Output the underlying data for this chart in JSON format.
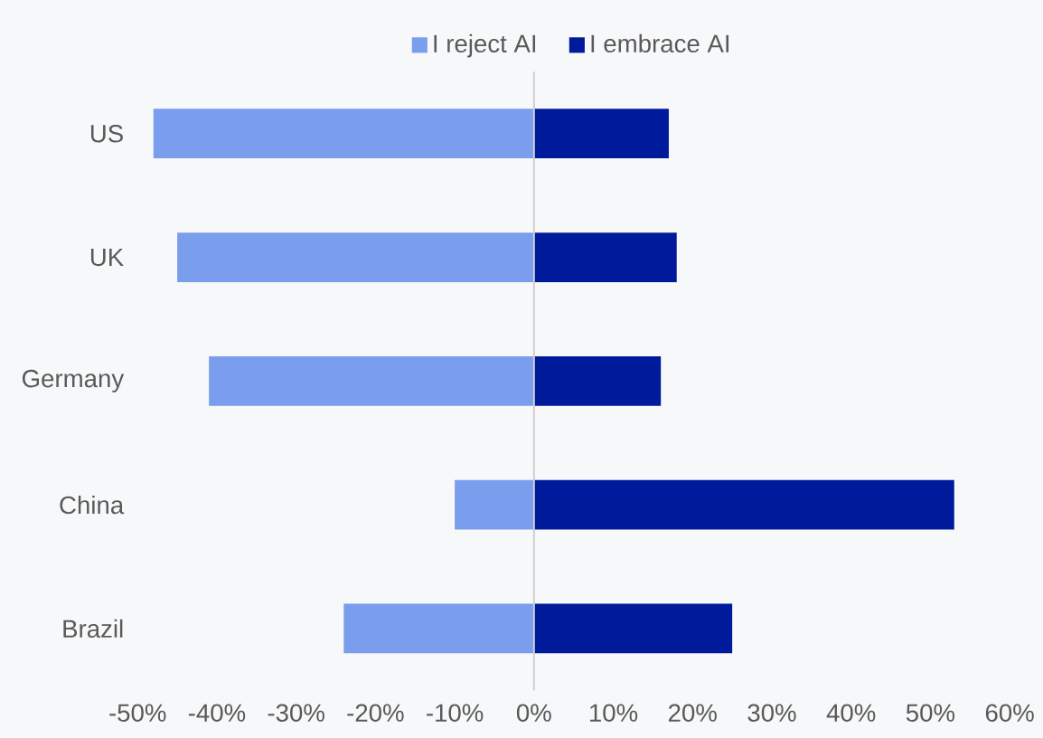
{
  "chart_data": {
    "type": "bar",
    "orientation": "horizontal",
    "stacked": true,
    "legend": "top",
    "grid": false,
    "categories": [
      "US",
      "UK",
      "Germany",
      "China",
      "Brazil"
    ],
    "series": [
      {
        "name": "I reject AI",
        "color": "#7b9ded",
        "values": [
          -48,
          -45,
          -41,
          -10,
          -24
        ]
      },
      {
        "name": "I embrace AI",
        "color": "#001a9c",
        "values": [
          17,
          18,
          16,
          53,
          25
        ]
      }
    ],
    "ref_lines": [
      {
        "axis": "x",
        "value": 0,
        "color": "#d0d0d0"
      }
    ],
    "xlim": [
      -50,
      60
    ],
    "xticks": [
      {
        "value": -50,
        "label": "-50%"
      },
      {
        "value": -40,
        "label": "-40%"
      },
      {
        "value": -30,
        "label": "-30%"
      },
      {
        "value": -20,
        "label": "-20%"
      },
      {
        "value": -10,
        "label": "-10%"
      },
      {
        "value": 0,
        "label": "0%"
      },
      {
        "value": 10,
        "label": "10%"
      },
      {
        "value": 20,
        "label": "20%"
      },
      {
        "value": 30,
        "label": "30%"
      },
      {
        "value": 40,
        "label": "40%"
      },
      {
        "value": 50,
        "label": "50%"
      },
      {
        "value": 60,
        "label": "60%"
      }
    ]
  }
}
